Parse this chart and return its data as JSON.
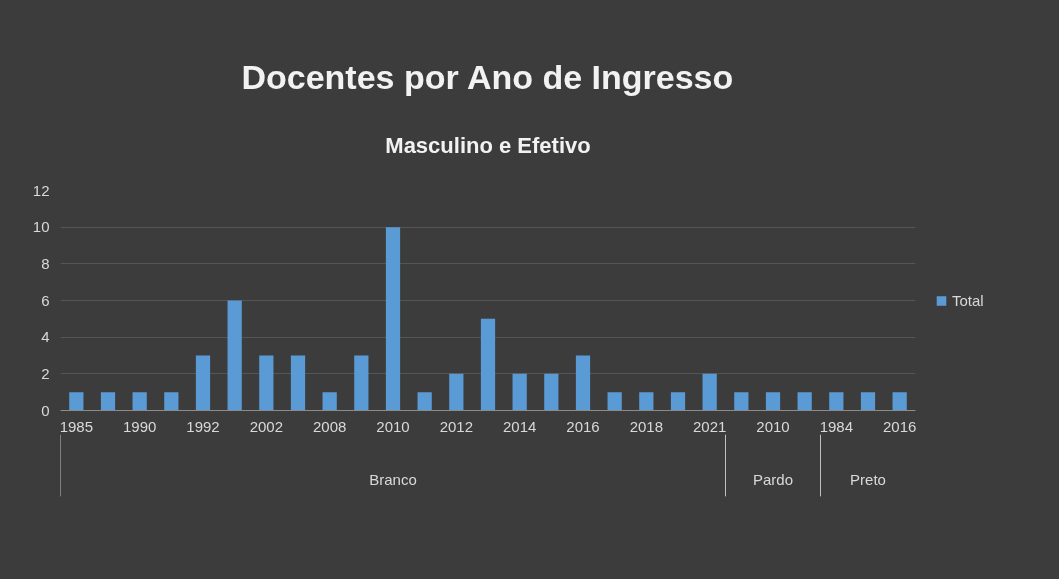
{
  "chart_data": {
    "type": "bar",
    "title": "Docentes por Ano de Ingresso",
    "subtitle": "Masculino e Efetivo",
    "categories": [
      "1985",
      null,
      "1990",
      null,
      "1992",
      null,
      "2002",
      null,
      "2008",
      null,
      "2010",
      null,
      "2012",
      null,
      "2014",
      null,
      "2016",
      null,
      "2018",
      null,
      "2021",
      null,
      "2010",
      null,
      "1984",
      null,
      "2016"
    ],
    "series": [
      {
        "name": "Total",
        "color": "#5b9bd5",
        "values": [
          1,
          1,
          1,
          1,
          3,
          6,
          3,
          3,
          1,
          3,
          10,
          1,
          2,
          5,
          2,
          2,
          3,
          1,
          1,
          1,
          2,
          1,
          1,
          1,
          1,
          1,
          1
        ]
      }
    ],
    "annotations": [
      "Branco",
      "Pardo",
      "Preto"
    ],
    "ylim": [
      0,
      12
    ],
    "yticks": [
      0,
      2,
      4,
      6,
      8,
      10,
      12
    ],
    "grid": "y",
    "legend": "right"
  }
}
